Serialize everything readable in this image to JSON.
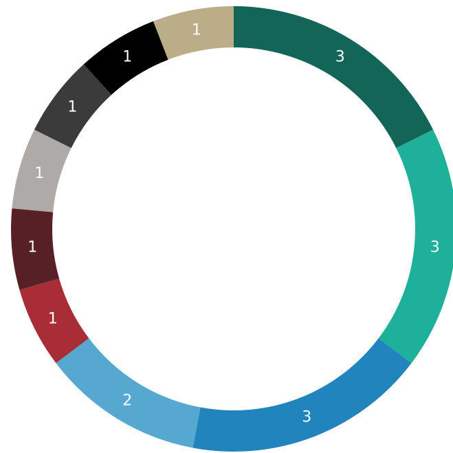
{
  "chart_data": {
    "type": "pie",
    "variant": "donut",
    "title": "",
    "legend": "none",
    "slices": [
      {
        "value": 3,
        "label": "3",
        "color": "#126557"
      },
      {
        "value": 3,
        "label": "3",
        "color": "#1fb09a"
      },
      {
        "value": 3,
        "label": "3",
        "color": "#2184bd"
      },
      {
        "value": 2,
        "label": "2",
        "color": "#57a8d0"
      },
      {
        "value": 1,
        "label": "1",
        "color": "#a92d36"
      },
      {
        "value": 1,
        "label": "1",
        "color": "#572026"
      },
      {
        "value": 1,
        "label": "1",
        "color": "#aeaaa8"
      },
      {
        "value": 1,
        "label": "1",
        "color": "#3b3b3c"
      },
      {
        "value": 1,
        "label": "1",
        "color": "#000000"
      },
      {
        "value": 1,
        "label": "1",
        "color": "#baad88"
      }
    ]
  }
}
